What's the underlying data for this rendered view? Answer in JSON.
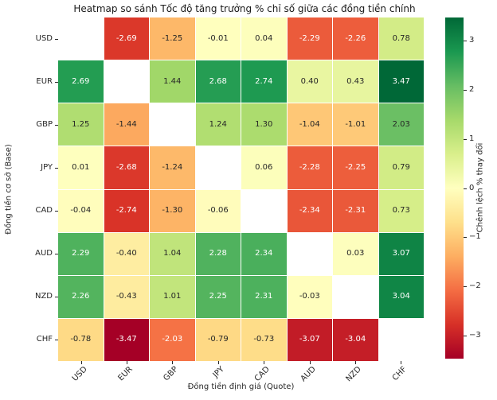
{
  "title": "Heatmap so sánh Tốc độ tăng trưởng % chỉ số giữa các đồng tiền chính",
  "chart_data": {
    "type": "heatmap",
    "rows": [
      "USD",
      "EUR",
      "GBP",
      "JPY",
      "CAD",
      "AUD",
      "NZD",
      "CHF"
    ],
    "columns": [
      "USD",
      "EUR",
      "GBP",
      "JPY",
      "CAD",
      "AUD",
      "NZD",
      "CHF"
    ],
    "xlabel": "Đồng tiền định giá (Quote)",
    "ylabel": "Đồng tiền cơ sở (Base)",
    "colorbar_label": "Chênh lệch % thay đổi",
    "colorbar_ticks": [
      3,
      2,
      1,
      0,
      -1,
      -2,
      -3
    ],
    "vmin": -3.47,
    "vmax": 3.47,
    "colormap": "RdYlGn",
    "colormap_stops": [
      "#a50026",
      "#d73027",
      "#f46d43",
      "#fdae61",
      "#fee08b",
      "#ffffbf",
      "#d9ef8b",
      "#a6d96a",
      "#66bd63",
      "#1a9850",
      "#006837"
    ],
    "value_decimals": 2,
    "matrix": [
      [
        null,
        -2.69,
        -1.25,
        -0.01,
        0.04,
        -2.29,
        -2.26,
        0.78
      ],
      [
        2.69,
        null,
        1.44,
        2.68,
        2.74,
        0.4,
        0.43,
        3.47
      ],
      [
        1.25,
        -1.44,
        null,
        1.24,
        1.3,
        -1.04,
        -1.01,
        2.03
      ],
      [
        0.01,
        -2.68,
        -1.24,
        null,
        0.06,
        -2.28,
        -2.25,
        0.79
      ],
      [
        -0.04,
        -2.74,
        -1.3,
        -0.06,
        null,
        -2.34,
        -2.31,
        0.73
      ],
      [
        2.29,
        -0.4,
        1.04,
        2.28,
        2.34,
        null,
        0.03,
        3.07
      ],
      [
        2.26,
        -0.43,
        1.01,
        2.25,
        2.31,
        -0.03,
        null,
        3.04
      ],
      [
        -0.78,
        -3.47,
        -2.03,
        -0.79,
        -0.73,
        -3.07,
        -3.04,
        null
      ]
    ]
  }
}
